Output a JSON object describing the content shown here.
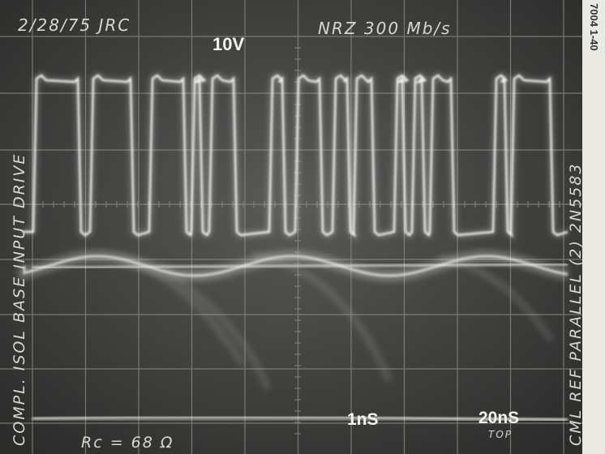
{
  "annotations": {
    "date_initials": "2/28/75 JRC",
    "volts_per_div": "10V",
    "format_rate": "NRZ 300 Mb/s",
    "left_caption": "COMPL. ISOL BASE INPUT DRIVE",
    "right_caption": "CML REF PARALLEL (2) 2N5583",
    "resistor": "Rc = 68 Ω",
    "time_upper": "1nS",
    "time_lower": "20nS",
    "trace_label": "TOP",
    "edge_code": "7004 1-40"
  }
}
